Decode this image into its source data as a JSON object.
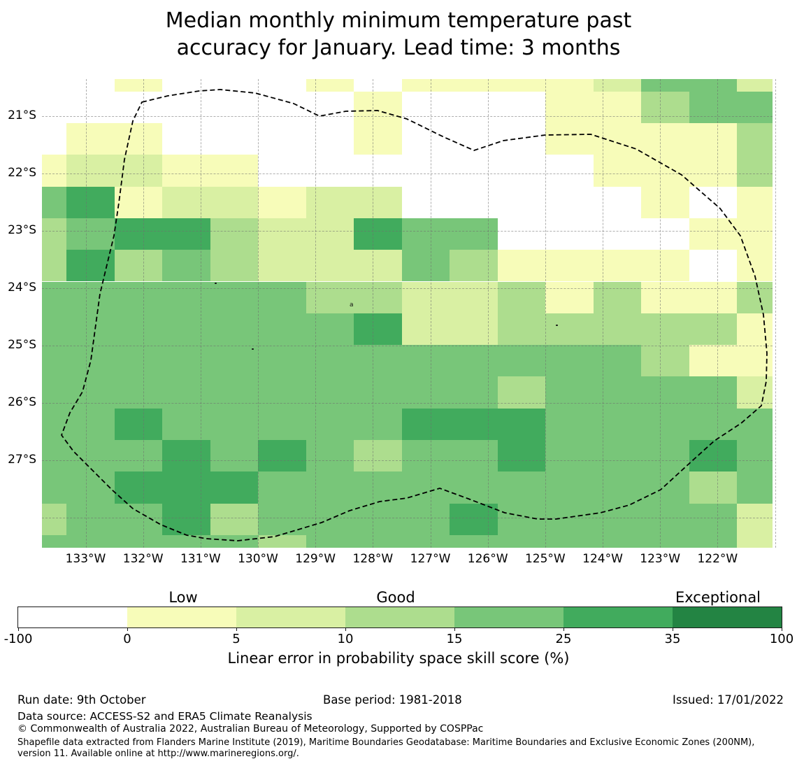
{
  "title": "Median monthly minimum temperature past\naccuracy for January. Lead time: 3 months",
  "chart_data": {
    "type": "heatmap",
    "title": "Median monthly minimum temperature past accuracy for January. Lead time: 3 months",
    "x_tick_labels": [
      "133°W",
      "132°W",
      "131°W",
      "130°W",
      "129°W",
      "128°W",
      "127°W",
      "126°W",
      "125°W",
      "124°W",
      "123°W",
      "122°W"
    ],
    "y_tick_labels": [
      "21°S",
      "22°S",
      "23°S",
      "24°S",
      "25°S",
      "26°S",
      "27°S"
    ],
    "legend_position": "bottom",
    "grid_on": true,
    "palette": [
      "#ffffff",
      "#f7fcb9",
      "#d9f0a3",
      "#addd8e",
      "#78c679",
      "#41ab5d",
      "#238443"
    ],
    "palette_meaning": [
      "-100 to 0",
      "0 to 5",
      "5 to 10",
      "10 to 15",
      "15 to 25",
      "25 to 35",
      "35 to 100"
    ],
    "grid_codes": [
      "0010001011112442",
      "0000000100011344",
      "0110000100011113",
      "1221100000001113",
      "4512212200000101",
      "3455322544000011",
      "3534322243111101",
      "4444443322313113",
      "4444444522333331",
      "4444444444444311",
      "4444444444344442",
      "4454444455544444",
      "4445454344544454",
      "4455544444444434",
      "3445344445444442",
      "4444434444444442"
    ],
    "boundary_outline": "dashed EEZ maritime boundary"
  },
  "colorbar": {
    "category_labels": [
      "Low",
      "Good",
      "Exceptional"
    ],
    "tick_labels": [
      "-100",
      "0",
      "5",
      "10",
      "15",
      "25",
      "35",
      "100"
    ],
    "segment_colors": [
      "#ffffff",
      "#f7fcb9",
      "#d9f0a3",
      "#addd8e",
      "#78c679",
      "#41ab5d",
      "#238443"
    ],
    "axis_label": "Linear error in probability space skill score (%)"
  },
  "footer": {
    "run_date": "Run date: 9th October",
    "base_period": "Base period: 1981-2018",
    "issued": "Issued: 17/01/2022",
    "data_source": "Data source: ACCESS-S2 and ERA5 Climate Reanalysis",
    "copyright": "© Commonwealth of Australia 2022, Australian Bureau of Meteorology, Supported by COSPPac",
    "shapefile_note": "Shapefile data extracted from Flanders Marine Institute (2019), Maritime Boundaries Geodatabase: Maritime Boundaries and Exclusive Economic Zones (200NM), version 11. Available online at http://www.marineregions.org/."
  },
  "artifacts": {
    "stray_glyph": "a"
  }
}
